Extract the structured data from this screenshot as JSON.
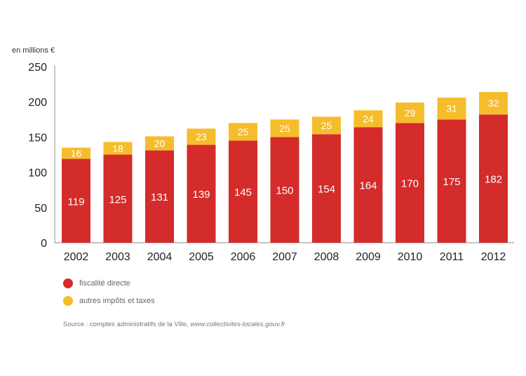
{
  "chart_data": {
    "type": "bar",
    "stacked": true,
    "ylabel": "en millions €",
    "ylim": [
      0,
      250
    ],
    "yticks": [
      0,
      50,
      100,
      150,
      200,
      250
    ],
    "categories": [
      "2002",
      "2003",
      "2004",
      "2005",
      "2006",
      "2007",
      "2008",
      "2009",
      "2010",
      "2011",
      "2012"
    ],
    "series": [
      {
        "name": "fiscalité directe",
        "color": "#d42b2b",
        "values": [
          119,
          125,
          131,
          139,
          145,
          150,
          154,
          164,
          170,
          175,
          182
        ]
      },
      {
        "name": "autres impôts et taxes",
        "color": "#f5bd2c",
        "values": [
          16,
          18,
          20,
          23,
          25,
          25,
          25,
          24,
          29,
          31,
          32
        ]
      }
    ],
    "legend_position": "bottom-left",
    "source_label": "Source : comptes administratifs de la Ville, ",
    "source_url": "www.collectivites-locales.gouv.fr"
  }
}
